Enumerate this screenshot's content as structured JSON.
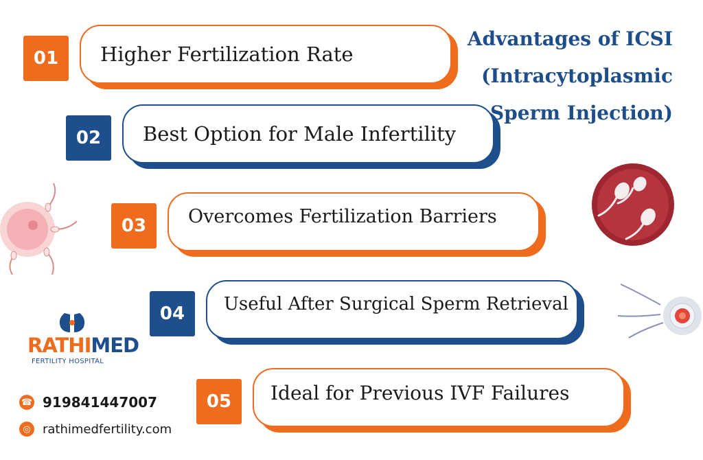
{
  "title": {
    "line1": "Advantages of ICSI",
    "line2": "(Intracytoplasmic",
    "line3": "Sperm Injection)"
  },
  "items": [
    {
      "number": "01",
      "label": "Higher Fertilization Rate",
      "color": "orange"
    },
    {
      "number": "02",
      "label": "Best Option for Male Infertility",
      "color": "blue"
    },
    {
      "number": "03",
      "label": "Overcomes Fertilization Barriers",
      "color": "orange"
    },
    {
      "number": "04",
      "label": "Useful After Surgical Sperm Retrieval",
      "color": "blue"
    },
    {
      "number": "05",
      "label": "Ideal for Previous IVF Failures",
      "color": "orange"
    }
  ],
  "logo": {
    "word_part1": "RATHI",
    "word_part2": "MED",
    "subtitle": "FERTILITY HOSPITAL"
  },
  "contact": {
    "phone": "919841447007",
    "website": "rathimedfertility.com"
  },
  "colors": {
    "orange": "#ef6b1e",
    "blue": "#1e4e8c",
    "title": "#1d4e8a"
  }
}
